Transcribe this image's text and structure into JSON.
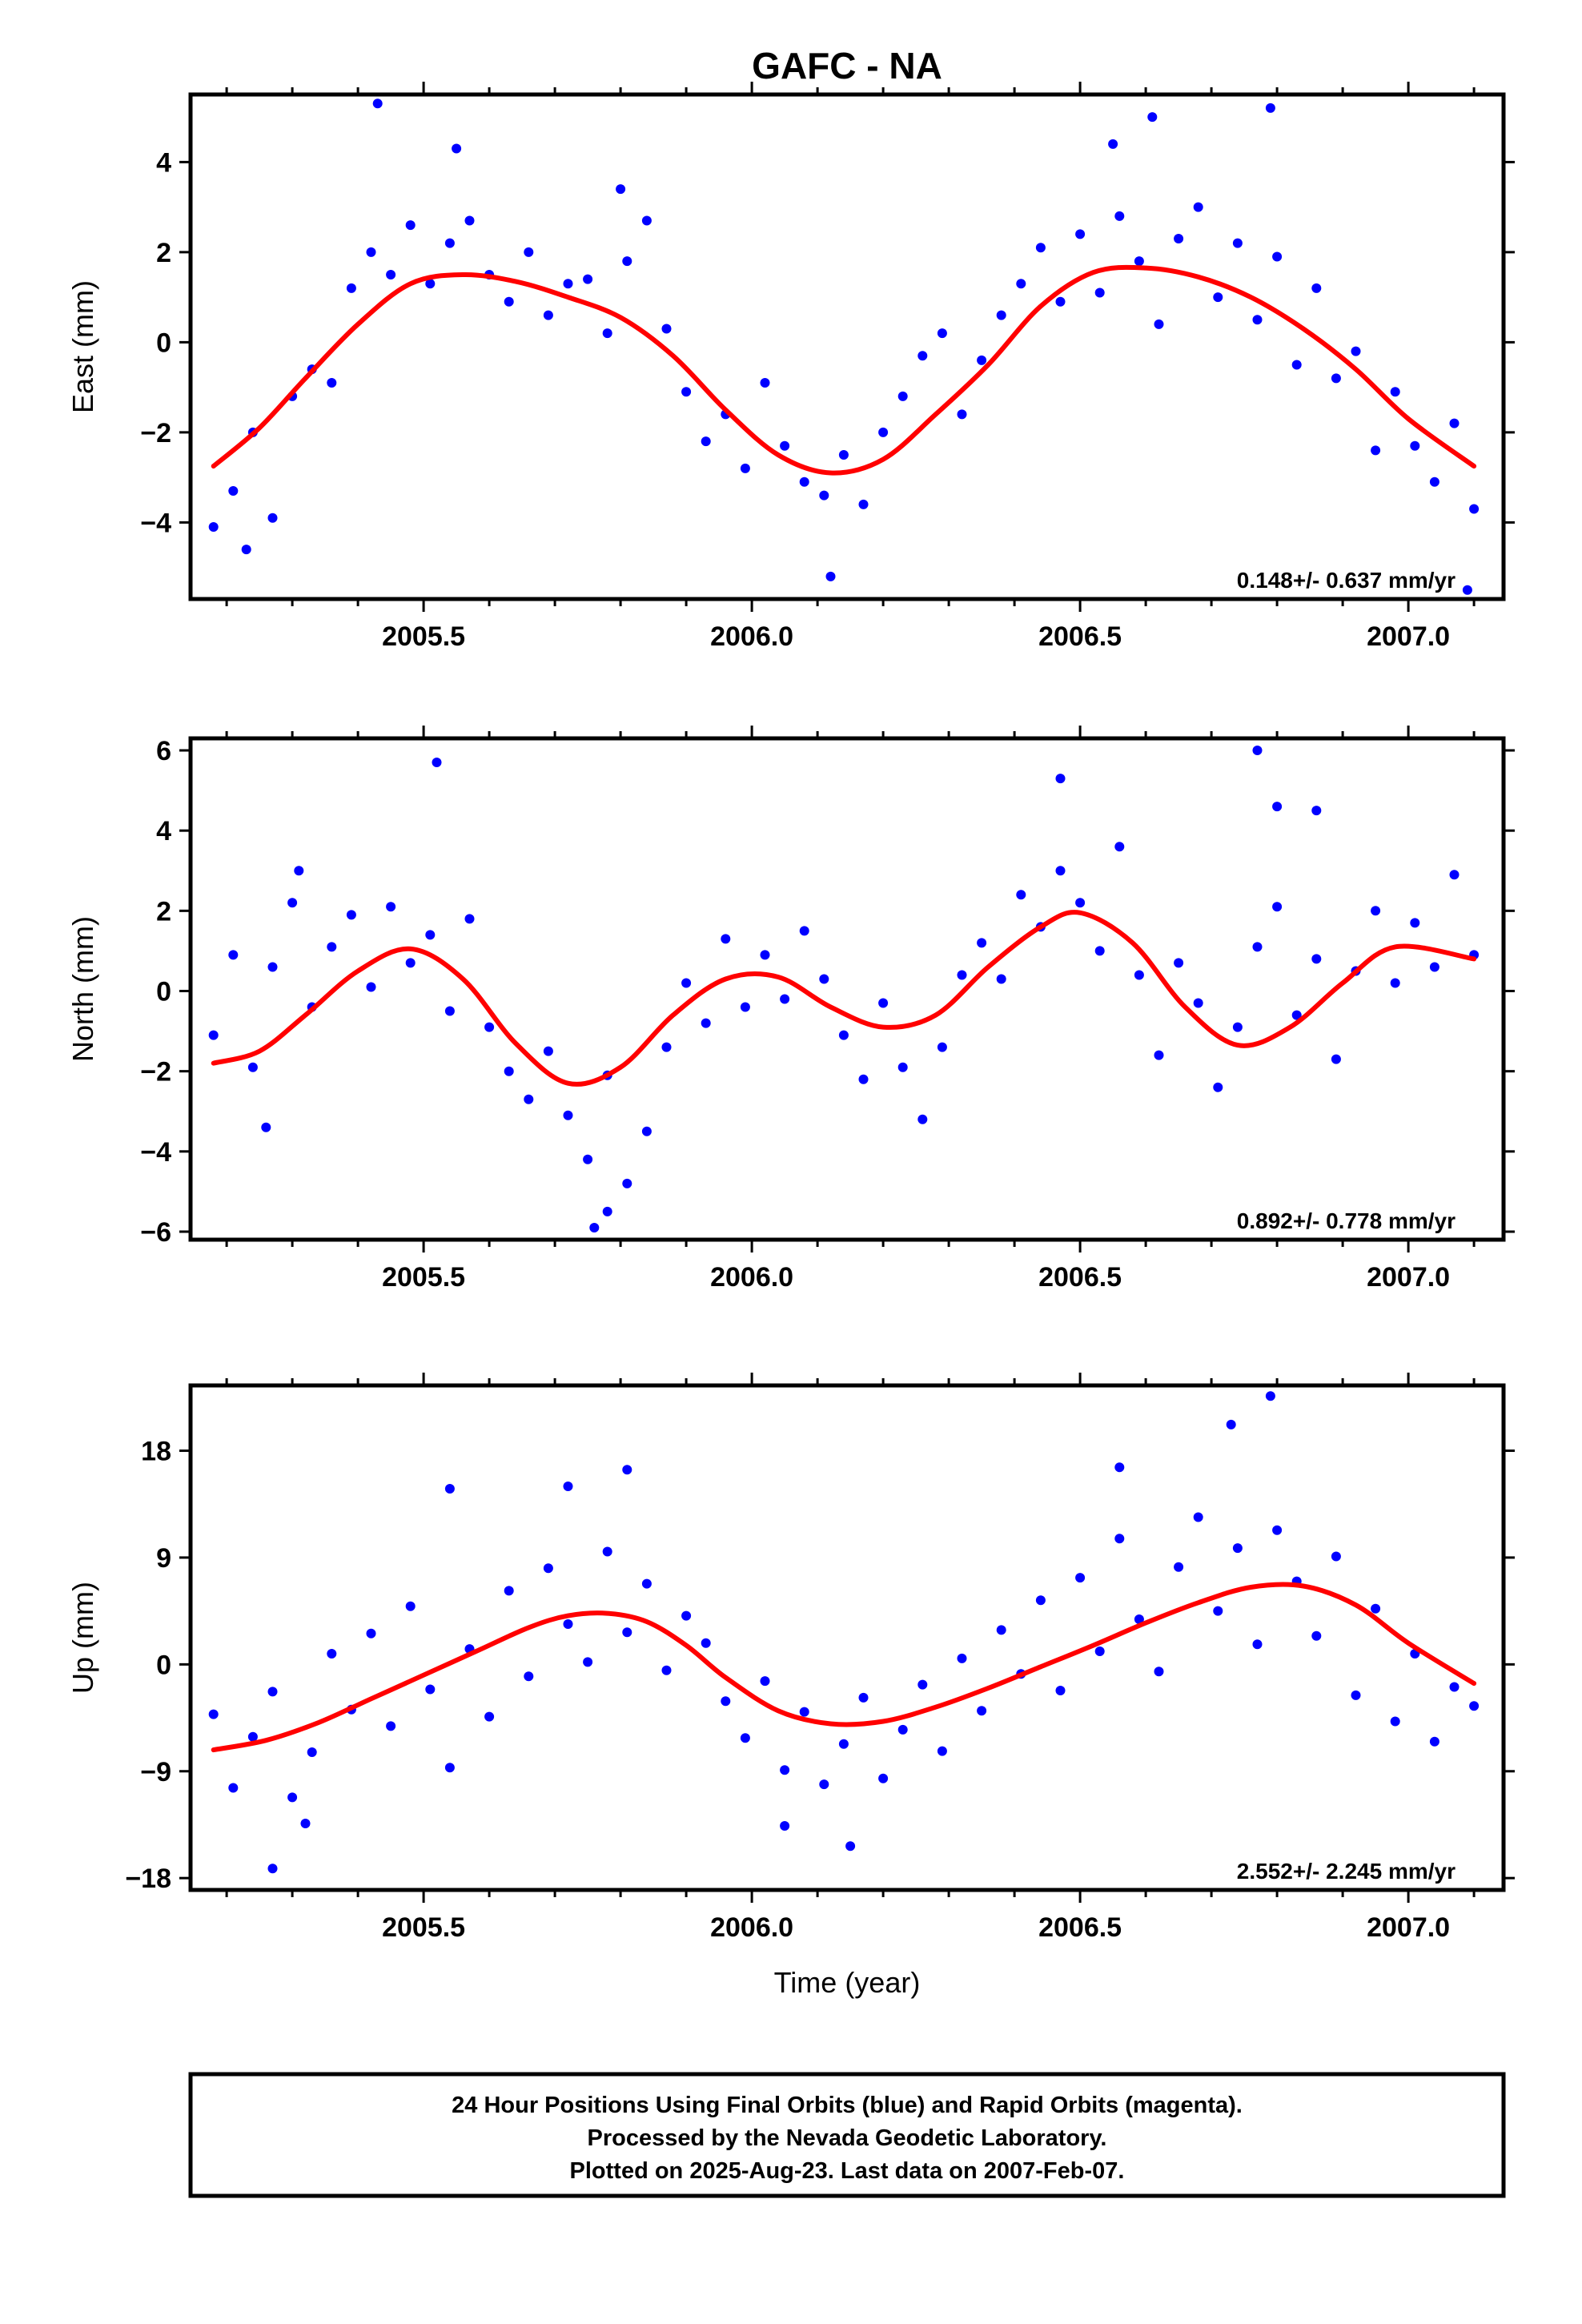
{
  "title": "GAFC - NA",
  "xlabel": "Time (year)",
  "footer": {
    "line1": "24 Hour Positions Using Final Orbits (blue) and Rapid Orbits (magenta).",
    "line2": "Processed by the Nevada Geodetic Laboratory.",
    "line3": "Plotted on 2025-Aug-23. Last data on 2007-Feb-07."
  },
  "colors": {
    "points": "#0000ff",
    "fit": "#ff0000",
    "frame": "#000000"
  },
  "chart_data": [
    {
      "type": "scatter",
      "name": "east",
      "ylabel": "East (mm)",
      "rate_text": "0.148+/- 0.637 mm/yr",
      "xlim": [
        2005.145,
        2007.145
      ],
      "ylim": [
        -5.7,
        5.5
      ],
      "xticks": [
        2005.5,
        2006.0,
        2006.5,
        2007.0
      ],
      "xtick_labels": [
        "2005.5",
        "2006.0",
        "2006.5",
        "2007.0"
      ],
      "yticks": [
        -4,
        -2,
        0,
        2,
        4
      ],
      "ytick_labels": [
        "−4",
        "−2",
        "0",
        "2",
        "4"
      ],
      "series": [
        {
          "role": "fit",
          "x": [
            2005.18,
            2005.25,
            2005.32,
            2005.4,
            2005.48,
            2005.56,
            2005.64,
            2005.72,
            2005.8,
            2005.88,
            2005.96,
            2006.04,
            2006.12,
            2006.2,
            2006.28,
            2006.36,
            2006.44,
            2006.52,
            2006.6,
            2006.68,
            2006.76,
            2006.84,
            2006.92,
            2007.0,
            2007.1
          ],
          "y": [
            -2.75,
            -1.9,
            -0.8,
            0.4,
            1.3,
            1.5,
            1.35,
            1.0,
            0.55,
            -0.3,
            -1.5,
            -2.5,
            -2.9,
            -2.6,
            -1.6,
            -0.5,
            0.8,
            1.55,
            1.65,
            1.45,
            1.0,
            0.3,
            -0.6,
            -1.7,
            -2.75
          ]
        },
        {
          "role": "points",
          "x": [
            2005.18,
            2005.21,
            2005.24,
            2005.27,
            2005.3,
            2005.33,
            2005.36,
            2005.39,
            2005.42,
            2005.45,
            2005.48,
            2005.51,
            2005.54,
            2005.57,
            2005.6,
            2005.63,
            2005.66,
            2005.69,
            2005.72,
            2005.75,
            2005.78,
            2005.81,
            2005.84,
            2005.87,
            2005.9,
            2005.93,
            2005.96,
            2005.99,
            2006.02,
            2006.05,
            2006.08,
            2006.11,
            2006.14,
            2006.17,
            2006.2,
            2006.23,
            2006.26,
            2006.29,
            2006.32,
            2006.35,
            2006.38,
            2006.41,
            2006.44,
            2006.47,
            2006.5,
            2006.53,
            2006.56,
            2006.59,
            2006.62,
            2006.65,
            2006.68,
            2006.71,
            2006.74,
            2006.77,
            2006.8,
            2006.83,
            2006.86,
            2006.89,
            2006.92,
            2006.95,
            2006.98,
            2007.01,
            2007.04,
            2007.07,
            2007.1,
            2005.23,
            2005.43,
            2005.55,
            2005.8,
            2006.12,
            2006.55,
            2006.61,
            2006.79,
            2007.09
          ],
          "y": [
            -4.1,
            -3.3,
            -2.0,
            -3.9,
            -1.2,
            -0.6,
            -0.9,
            1.2,
            2.0,
            1.5,
            2.6,
            1.3,
            2.2,
            2.7,
            1.5,
            0.9,
            2.0,
            0.6,
            1.3,
            1.4,
            0.2,
            1.8,
            2.7,
            0.3,
            -1.1,
            -2.2,
            -1.6,
            -2.8,
            -0.9,
            -2.3,
            -3.1,
            -3.4,
            -2.5,
            -3.6,
            -2.0,
            -1.2,
            -0.3,
            0.2,
            -1.6,
            -0.4,
            0.6,
            1.3,
            2.1,
            0.9,
            2.4,
            1.1,
            2.8,
            1.8,
            0.4,
            2.3,
            3.0,
            1.0,
            2.2,
            0.5,
            1.9,
            -0.5,
            1.2,
            -0.8,
            -0.2,
            -2.4,
            -1.1,
            -2.3,
            -3.1,
            -1.8,
            -3.7,
            -4.6,
            5.3,
            4.3,
            3.4,
            -5.2,
            4.4,
            5.0,
            5.2,
            -5.5
          ]
        }
      ]
    },
    {
      "type": "scatter",
      "name": "north",
      "ylabel": "North (mm)",
      "rate_text": "0.892+/- 0.778 mm/yr",
      "xlim": [
        2005.145,
        2007.145
      ],
      "ylim": [
        -6.2,
        6.3
      ],
      "xticks": [
        2005.5,
        2006.0,
        2006.5,
        2007.0
      ],
      "xtick_labels": [
        "2005.5",
        "2006.0",
        "2006.5",
        "2007.0"
      ],
      "yticks": [
        -6,
        -4,
        -2,
        0,
        2,
        4,
        6
      ],
      "ytick_labels": [
        "−6",
        "−4",
        "−2",
        "0",
        "2",
        "4",
        "6"
      ],
      "series": [
        {
          "role": "fit",
          "x": [
            2005.18,
            2005.25,
            2005.32,
            2005.4,
            2005.48,
            2005.56,
            2005.64,
            2005.72,
            2005.8,
            2005.88,
            2005.96,
            2006.04,
            2006.12,
            2006.2,
            2006.28,
            2006.36,
            2006.44,
            2006.5,
            2006.58,
            2006.66,
            2006.74,
            2006.82,
            2006.9,
            2006.98,
            2007.1
          ],
          "y": [
            -1.8,
            -1.5,
            -0.6,
            0.5,
            1.05,
            0.3,
            -1.3,
            -2.3,
            -1.9,
            -0.6,
            0.3,
            0.35,
            -0.4,
            -0.9,
            -0.6,
            0.6,
            1.6,
            1.95,
            1.2,
            -0.4,
            -1.35,
            -0.9,
            0.2,
            1.1,
            0.8
          ]
        },
        {
          "role": "points",
          "x": [
            2005.18,
            2005.21,
            2005.24,
            2005.27,
            2005.3,
            2005.33,
            2005.36,
            2005.39,
            2005.42,
            2005.45,
            2005.48,
            2005.51,
            2005.54,
            2005.57,
            2005.6,
            2005.63,
            2005.66,
            2005.69,
            2005.72,
            2005.75,
            2005.78,
            2005.81,
            2005.84,
            2005.87,
            2005.9,
            2005.93,
            2005.96,
            2005.99,
            2006.02,
            2006.05,
            2006.08,
            2006.11,
            2006.14,
            2006.17,
            2006.2,
            2006.23,
            2006.26,
            2006.29,
            2006.32,
            2006.35,
            2006.38,
            2006.41,
            2006.44,
            2006.47,
            2006.5,
            2006.53,
            2006.56,
            2006.59,
            2006.62,
            2006.65,
            2006.68,
            2006.71,
            2006.74,
            2006.77,
            2006.8,
            2006.83,
            2006.86,
            2006.89,
            2006.92,
            2006.95,
            2006.98,
            2007.01,
            2007.04,
            2007.07,
            2007.1,
            2005.26,
            2005.31,
            2005.52,
            2005.78,
            2005.76,
            2006.47,
            2006.77,
            2006.8,
            2006.86
          ],
          "y": [
            -1.1,
            0.9,
            -1.9,
            0.6,
            2.2,
            -0.4,
            1.1,
            1.9,
            0.1,
            2.1,
            0.7,
            1.4,
            -0.5,
            1.8,
            -0.9,
            -2.0,
            -2.7,
            -1.5,
            -3.1,
            -4.2,
            -2.1,
            -4.8,
            -3.5,
            -1.4,
            0.2,
            -0.8,
            1.3,
            -0.4,
            0.9,
            -0.2,
            1.5,
            0.3,
            -1.1,
            -2.2,
            -0.3,
            -1.9,
            -3.2,
            -1.4,
            0.4,
            1.2,
            0.3,
            2.4,
            1.6,
            3.0,
            2.2,
            1.0,
            3.6,
            0.4,
            -1.6,
            0.7,
            -0.3,
            -2.4,
            -0.9,
            1.1,
            2.1,
            -0.6,
            0.8,
            -1.7,
            0.5,
            2.0,
            0.2,
            1.7,
            0.6,
            2.9,
            0.9,
            -3.4,
            3.0,
            5.7,
            -5.5,
            -5.9,
            5.3,
            6.0,
            4.6,
            4.5
          ]
        }
      ]
    },
    {
      "type": "scatter",
      "name": "up",
      "ylabel": "Up (mm)",
      "rate_text": "2.552+/- 2.245 mm/yr",
      "xlim": [
        2005.145,
        2007.145
      ],
      "ylim": [
        -19,
        23.5
      ],
      "xticks": [
        2005.5,
        2006.0,
        2006.5,
        2007.0
      ],
      "xtick_labels": [
        "2005.5",
        "2006.0",
        "2006.5",
        "2007.0"
      ],
      "yticks": [
        -18,
        -9,
        0,
        9,
        18
      ],
      "ytick_labels": [
        "−18",
        "−9",
        "0",
        "9",
        "18"
      ],
      "series": [
        {
          "role": "fit",
          "x": [
            2005.18,
            2005.26,
            2005.34,
            2005.42,
            2005.5,
            2005.58,
            2005.66,
            2005.72,
            2005.78,
            2005.84,
            2005.9,
            2005.96,
            2006.04,
            2006.12,
            2006.2,
            2006.28,
            2006.36,
            2006.44,
            2006.52,
            2006.6,
            2006.68,
            2006.76,
            2006.84,
            2006.92,
            2007.0,
            2007.1
          ],
          "y": [
            -7.2,
            -6.4,
            -4.9,
            -2.9,
            -0.9,
            1.1,
            3.1,
            4.1,
            4.3,
            3.6,
            1.6,
            -1.1,
            -3.9,
            -5.0,
            -4.8,
            -3.6,
            -2.0,
            -0.2,
            1.6,
            3.5,
            5.2,
            6.5,
            6.6,
            5.0,
            1.8,
            -1.6
          ]
        },
        {
          "role": "points",
          "x": [
            2005.18,
            2005.21,
            2005.24,
            2005.27,
            2005.3,
            2005.33,
            2005.36,
            2005.39,
            2005.42,
            2005.45,
            2005.48,
            2005.51,
            2005.54,
            2005.57,
            2005.6,
            2005.63,
            2005.66,
            2005.69,
            2005.72,
            2005.75,
            2005.78,
            2005.81,
            2005.84,
            2005.87,
            2005.9,
            2005.93,
            2005.96,
            2005.99,
            2006.02,
            2006.05,
            2006.08,
            2006.11,
            2006.14,
            2006.17,
            2006.2,
            2006.23,
            2006.26,
            2006.29,
            2006.32,
            2006.35,
            2006.38,
            2006.41,
            2006.44,
            2006.47,
            2006.5,
            2006.53,
            2006.56,
            2006.59,
            2006.62,
            2006.65,
            2006.68,
            2006.71,
            2006.74,
            2006.77,
            2006.8,
            2006.83,
            2006.86,
            2006.89,
            2006.92,
            2006.95,
            2006.98,
            2007.01,
            2007.04,
            2007.07,
            2007.1,
            2005.27,
            2005.32,
            2005.54,
            2005.72,
            2005.81,
            2006.05,
            2006.15,
            2006.56,
            2006.73,
            2006.79
          ],
          "y": [
            -4.2,
            -10.4,
            -6.1,
            -2.3,
            -11.2,
            -7.4,
            0.9,
            -3.8,
            2.6,
            -5.2,
            4.9,
            -2.1,
            -8.7,
            1.3,
            -4.4,
            6.2,
            -1.0,
            8.1,
            3.4,
            0.2,
            9.5,
            2.7,
            6.8,
            -0.5,
            4.1,
            1.8,
            -3.1,
            -6.2,
            -1.4,
            -8.9,
            -4.0,
            -10.1,
            -6.7,
            -2.8,
            -9.6,
            -5.5,
            -1.7,
            -7.3,
            0.5,
            -3.9,
            2.9,
            -0.8,
            5.4,
            -2.2,
            7.3,
            1.1,
            10.6,
            3.8,
            -0.6,
            8.2,
            12.4,
            4.5,
            9.8,
            1.7,
            11.3,
            7.0,
            2.4,
            9.1,
            -2.6,
            4.7,
            -4.8,
            0.9,
            -6.5,
            -1.9,
            -3.5,
            -17.2,
            -13.4,
            14.8,
            15.0,
            16.4,
            -13.6,
            -15.3,
            16.6,
            20.2,
            22.6
          ]
        }
      ]
    }
  ]
}
